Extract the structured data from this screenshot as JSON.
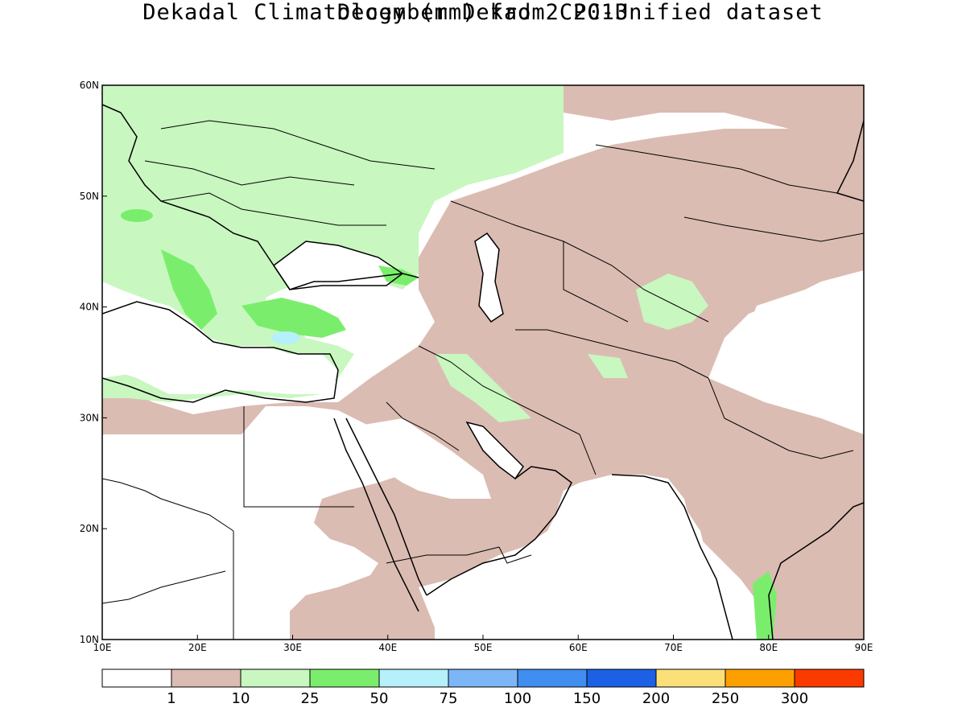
{
  "title": {
    "line1": "Dekadal Climatology (mm) from CPC-Unified dataset",
    "line2": "December Dekad 2 2013"
  },
  "axes": {
    "x_ticks": [
      "10E",
      "20E",
      "30E",
      "40E",
      "50E",
      "60E",
      "70E",
      "80E",
      "90E"
    ],
    "y_ticks": [
      "60N",
      "50N",
      "40N",
      "30N",
      "20N",
      "10N"
    ]
  },
  "colorbar": {
    "colors": [
      "#ffffff",
      "#dbbcb2",
      "#c8f7c0",
      "#7aee6c",
      "#b6f0fa",
      "#7cb6f6",
      "#3f8ef0",
      "#1c60e6",
      "#fbe07a",
      "#fba000",
      "#fb3a00"
    ],
    "labels": [
      "1",
      "10",
      "25",
      "50",
      "75",
      "100",
      "150",
      "200",
      "250",
      "300"
    ]
  },
  "map": {
    "lon_range": [
      10,
      90
    ],
    "lat_range": [
      10,
      60
    ],
    "ocean_color": "#ffffff",
    "coastline_color": "#000000"
  }
}
